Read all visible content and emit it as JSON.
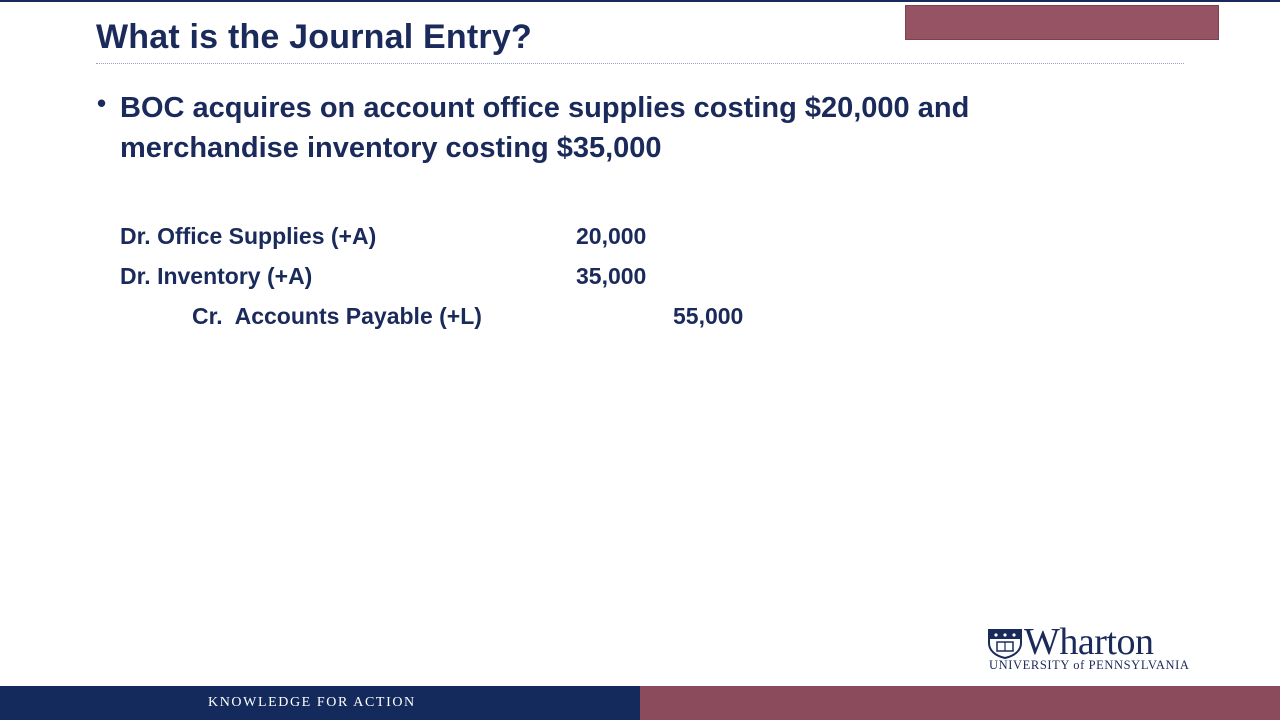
{
  "slide": {
    "title": "What is the Journal Entry?",
    "bullet": "BOC acquires on account office supplies costing $20,000 and merchandise inventory costing $35,000"
  },
  "journal_entry": [
    {
      "account": "Dr. Office Supplies (+A)",
      "amount": "20,000"
    },
    {
      "account": "Dr. Inventory (+A)",
      "amount": "35,000"
    },
    {
      "account": "Cr.  Accounts Payable (+L)",
      "amount": "55,000"
    }
  ],
  "branding": {
    "logo_name": "Wharton",
    "logo_subtitle": "UNIVERSITY of PENNSYLVANIA",
    "tagline": "KNOWLEDGE FOR ACTION"
  },
  "colors": {
    "navy": "#1a2a5a",
    "burgundy": "#8c4b5d",
    "background": "#ffffff"
  }
}
